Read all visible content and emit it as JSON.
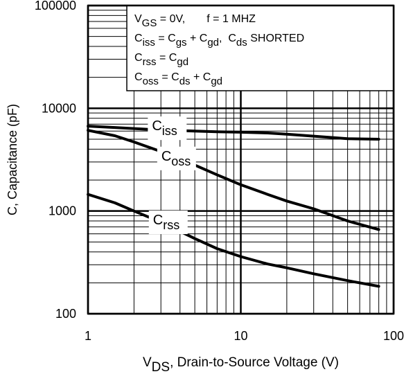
{
  "chart_data": {
    "type": "line",
    "xlabel": {
      "main": "V",
      "sub": "DS",
      "rest": ", Drain-to-Source Voltage (V)"
    },
    "ylabel": "C, Capacitance (pF)",
    "xscale": "log",
    "yscale": "log",
    "xlim": [
      1,
      100
    ],
    "ylim": [
      100,
      100000
    ],
    "grid": true,
    "xticks": [
      {
        "value": 1,
        "label": "1"
      },
      {
        "value": 10,
        "label": "10"
      },
      {
        "value": 100,
        "label": "100"
      }
    ],
    "yticks": [
      {
        "value": 100,
        "label": "100"
      },
      {
        "value": 1000,
        "label": "1000"
      },
      {
        "value": 10000,
        "label": "10000"
      },
      {
        "value": 100000,
        "label": "100000"
      }
    ],
    "legend_box": {
      "placement": "top-right",
      "lines": [
        [
          {
            "t": "V"
          },
          {
            "t": "GS",
            "sub": true
          },
          {
            "t": " = 0V,       f = 1 MHZ"
          }
        ],
        [
          {
            "t": "C"
          },
          {
            "t": "iss",
            "sub": true
          },
          {
            "t": " = C"
          },
          {
            "t": "gs",
            "sub": true
          },
          {
            "t": " + C"
          },
          {
            "t": "gd",
            "sub": true
          },
          {
            "t": ",  C"
          },
          {
            "t": "ds",
            "sub": true
          },
          {
            "t": " SHORTED"
          }
        ],
        [
          {
            "t": "C"
          },
          {
            "t": "rss",
            "sub": true
          },
          {
            "t": " = C"
          },
          {
            "t": "gd",
            "sub": true
          }
        ],
        [
          {
            "t": "C"
          },
          {
            "t": "oss",
            "sub": true
          },
          {
            "t": " = C"
          },
          {
            "t": "ds",
            "sub": true
          },
          {
            "t": " + C"
          },
          {
            "t": "gd",
            "sub": true
          }
        ]
      ]
    },
    "series": [
      {
        "name": {
          "main": "C",
          "sub": "iss"
        },
        "label_at": [
          3.3,
          6100
        ],
        "x": [
          1,
          1.5,
          2,
          3,
          5,
          7,
          10,
          15,
          20,
          30,
          50,
          80
        ],
        "y": [
          6700,
          6500,
          6350,
          6150,
          6000,
          5900,
          5850,
          5750,
          5600,
          5350,
          5050,
          5000
        ]
      },
      {
        "name": {
          "main": "C",
          "sub": "oss"
        },
        "label_at": [
          3.8,
          3100
        ],
        "x": [
          1,
          1.5,
          2,
          3,
          5,
          7,
          10,
          15,
          20,
          30,
          50,
          80
        ],
        "y": [
          6100,
          5400,
          4700,
          3800,
          2800,
          2250,
          1800,
          1450,
          1250,
          1050,
          800,
          660
        ]
      },
      {
        "name": {
          "main": "C",
          "sub": "rss"
        },
        "label_at": [
          3.35,
          740
        ],
        "x": [
          1,
          1.5,
          2,
          3,
          5,
          7,
          10,
          15,
          20,
          30,
          50,
          80
        ],
        "y": [
          1450,
          1200,
          1000,
          780,
          540,
          430,
          360,
          305,
          280,
          245,
          210,
          185
        ]
      }
    ]
  }
}
